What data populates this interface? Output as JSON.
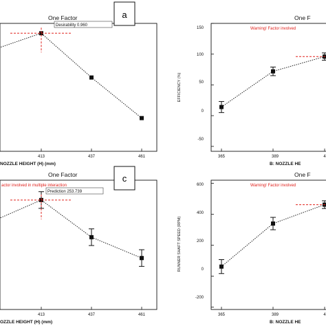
{
  "chart_data": [
    {
      "id": "a",
      "type": "line",
      "panel_label": "a",
      "title": "One Factor",
      "xlabel": "NOZZLE HEIGHT (H) (mm)",
      "ylabel": "",
      "x_ticks": [
        "413",
        "437",
        "461"
      ],
      "x": [
        389,
        413,
        437,
        461
      ],
      "values": [
        0.82,
        0.96,
        0.6,
        0.27
      ],
      "ylim": [
        0,
        1.04
      ],
      "annotation": "Desirability  0.960",
      "annotation_at": 413,
      "grid": false
    },
    {
      "id": "b",
      "type": "line",
      "panel_label": "",
      "title": "One F",
      "warning": "Warning! Factor involved",
      "xlabel": "B: NOZZLE HE",
      "ylabel": "EFFICIENCY (%)",
      "x_ticks": [
        "365",
        "389",
        "4"
      ],
      "y_ticks": [
        "150",
        "100",
        "50",
        "0",
        "-50"
      ],
      "x": [
        365,
        389,
        413
      ],
      "values": [
        14,
        72,
        96
      ],
      "errors": [
        9,
        7,
        6
      ],
      "ylim": [
        -58,
        150
      ],
      "grid": false
    },
    {
      "id": "c",
      "type": "line",
      "panel_label": "c",
      "title": "One Factor",
      "warning": "actor involved in multiple interaction",
      "xlabel": "OZZLE HEIGHT (H) (mm)",
      "ylabel": "",
      "x_ticks": [
        "413",
        "437",
        "461"
      ],
      "x": [
        389,
        413,
        437,
        461
      ],
      "values": [
        238,
        253.739,
        227,
        212
      ],
      "errors": [
        6,
        6,
        6,
        6
      ],
      "ylim": [
        175,
        268
      ],
      "annotation": "Prediction  253.739",
      "annotation_at": 413,
      "grid": false
    },
    {
      "id": "d",
      "type": "line",
      "panel_label": "",
      "title": "One F",
      "warning": "Warning! Factor involved",
      "xlabel": "B: NOZZLE HE",
      "ylabel": "RUNNER SHAFT SPEED (RPM)",
      "x_ticks": [
        "365",
        "389",
        "4"
      ],
      "y_ticks": [
        "600",
        "400",
        "200",
        "0",
        "-200"
      ],
      "x": [
        365,
        389,
        413
      ],
      "values": [
        62,
        340,
        462
      ],
      "errors": [
        45,
        40,
        25
      ],
      "ylim": [
        -215,
        620
      ],
      "grid": false
    }
  ]
}
